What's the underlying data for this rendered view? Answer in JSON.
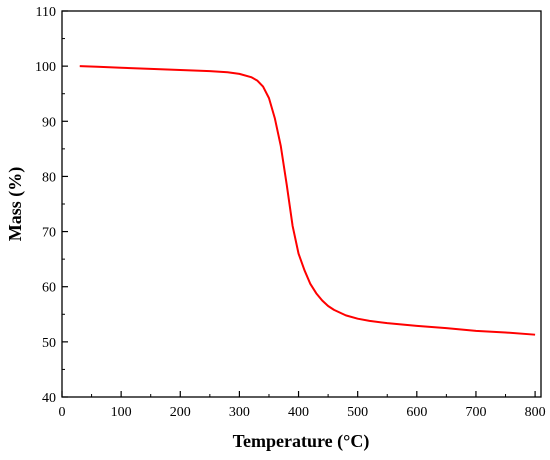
{
  "chart_data": {
    "type": "line",
    "xlabel": "Temperature (°C)",
    "ylabel": "Mass (%)",
    "xlim": [
      0,
      810
    ],
    "ylim": [
      40,
      110
    ],
    "xticks": [
      "0",
      "100",
      "200",
      "300",
      "400",
      "500",
      "600",
      "700",
      "800"
    ],
    "yticks": [
      "40",
      "50",
      "60",
      "70",
      "80",
      "90",
      "100",
      "110"
    ],
    "grid": false,
    "legend": "none",
    "series": [
      {
        "color": "#ff0000",
        "x": [
          30,
          60,
          100,
          150,
          200,
          250,
          280,
          300,
          320,
          330,
          340,
          350,
          360,
          370,
          380,
          390,
          400,
          410,
          420,
          430,
          440,
          450,
          460,
          480,
          500,
          520,
          550,
          600,
          650,
          700,
          750,
          800
        ],
        "y": [
          100.0,
          99.9,
          99.7,
          99.5,
          99.3,
          99.1,
          98.9,
          98.6,
          98.0,
          97.4,
          96.3,
          94.2,
          90.5,
          85.5,
          78.5,
          71.0,
          66.0,
          63.0,
          60.5,
          58.8,
          57.5,
          56.5,
          55.8,
          54.8,
          54.2,
          53.8,
          53.4,
          52.9,
          52.5,
          52.0,
          51.7,
          51.3
        ]
      }
    ]
  }
}
